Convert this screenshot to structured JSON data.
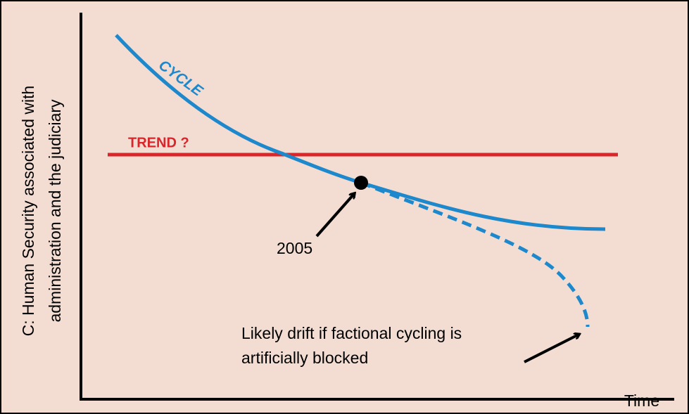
{
  "y_axis_label": [
    "C: Human Security associated with",
    "administration and the judiciary"
  ],
  "x_axis_label": "Time",
  "cycle_label": "CYCLE",
  "trend_label": "TREND ?",
  "point_label": "2005",
  "drift_note": [
    "Likely drift if factional cycling is",
    "artificially blocked"
  ]
}
